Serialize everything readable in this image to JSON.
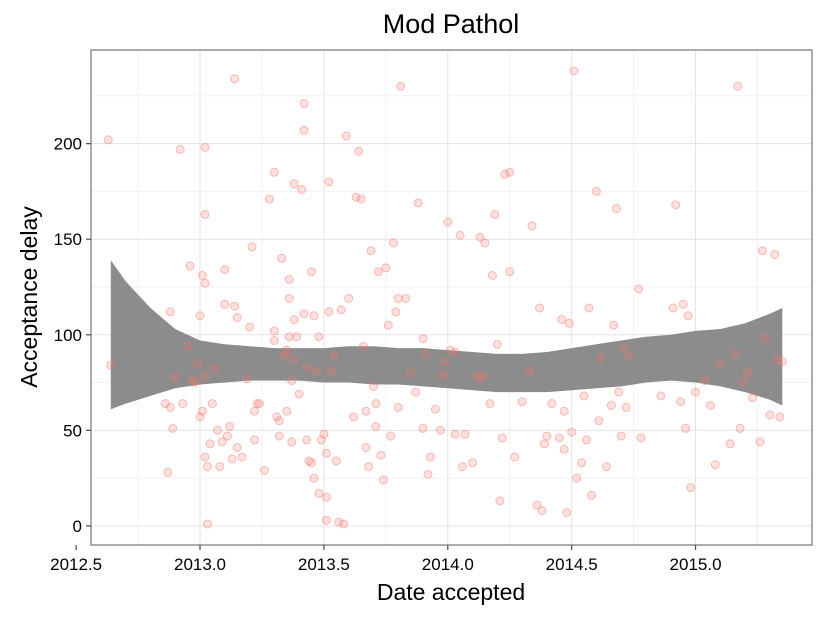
{
  "chart_data": {
    "type": "scatter",
    "title": "Mod Pathol",
    "xlabel": "Date accepted",
    "ylabel": "Acceptance delay",
    "xlim": [
      2012.56,
      2015.47
    ],
    "ylim": [
      -10,
      249
    ],
    "xticks": [
      2012.5,
      2013.0,
      2013.5,
      2014.0,
      2014.5,
      2015.0
    ],
    "xtick_labels": [
      "2012.5",
      "2013.0",
      "2013.5",
      "2014.0",
      "2014.5",
      "2015.0"
    ],
    "yticks": [
      0,
      50,
      100,
      150,
      200
    ],
    "ytick_labels": [
      "0",
      "50",
      "100",
      "150",
      "200"
    ],
    "grid": true,
    "point_color": "#f8766d",
    "band_color": "#8c8c8c",
    "points": [
      [
        2012.63,
        202
      ],
      [
        2012.64,
        84
      ],
      [
        2012.86,
        64
      ],
      [
        2012.87,
        28
      ],
      [
        2012.88,
        112
      ],
      [
        2012.88,
        62
      ],
      [
        2012.89,
        51
      ],
      [
        2012.9,
        78
      ],
      [
        2012.92,
        197
      ],
      [
        2012.93,
        64
      ],
      [
        2012.95,
        94
      ],
      [
        2012.96,
        136
      ],
      [
        2012.97,
        76
      ],
      [
        2012.98,
        75
      ],
      [
        2012.99,
        85
      ],
      [
        2013.0,
        110
      ],
      [
        2013.0,
        57
      ],
      [
        2013.01,
        131
      ],
      [
        2013.01,
        60
      ],
      [
        2013.02,
        198
      ],
      [
        2013.02,
        163
      ],
      [
        2013.02,
        127
      ],
      [
        2013.02,
        78
      ],
      [
        2013.02,
        36
      ],
      [
        2013.03,
        1
      ],
      [
        2013.03,
        31
      ],
      [
        2013.04,
        43
      ],
      [
        2013.05,
        64
      ],
      [
        2013.06,
        82
      ],
      [
        2013.07,
        50
      ],
      [
        2013.08,
        31
      ],
      [
        2013.09,
        44
      ],
      [
        2013.1,
        116
      ],
      [
        2013.1,
        134
      ],
      [
        2013.11,
        47
      ],
      [
        2013.12,
        52
      ],
      [
        2013.13,
        35
      ],
      [
        2013.14,
        115
      ],
      [
        2013.14,
        234
      ],
      [
        2013.15,
        109
      ],
      [
        2013.15,
        41
      ],
      [
        2013.17,
        36
      ],
      [
        2013.19,
        77
      ],
      [
        2013.2,
        104
      ],
      [
        2013.21,
        146
      ],
      [
        2013.22,
        60
      ],
      [
        2013.22,
        45
      ],
      [
        2013.23,
        64
      ],
      [
        2013.24,
        64
      ],
      [
        2013.26,
        29
      ],
      [
        2013.28,
        171
      ],
      [
        2013.3,
        185
      ],
      [
        2013.3,
        102
      ],
      [
        2013.3,
        97
      ],
      [
        2013.31,
        57
      ],
      [
        2013.32,
        55
      ],
      [
        2013.32,
        47
      ],
      [
        2013.33,
        140
      ],
      [
        2013.34,
        89
      ],
      [
        2013.35,
        92
      ],
      [
        2013.35,
        60
      ],
      [
        2013.36,
        119
      ],
      [
        2013.36,
        129
      ],
      [
        2013.36,
        99
      ],
      [
        2013.37,
        76
      ],
      [
        2013.37,
        44
      ],
      [
        2013.38,
        108
      ],
      [
        2013.38,
        87
      ],
      [
        2013.38,
        179
      ],
      [
        2013.39,
        99
      ],
      [
        2013.4,
        69
      ],
      [
        2013.41,
        176
      ],
      [
        2013.42,
        221
      ],
      [
        2013.42,
        207
      ],
      [
        2013.42,
        111
      ],
      [
        2013.43,
        83
      ],
      [
        2013.43,
        45
      ],
      [
        2013.44,
        34
      ],
      [
        2013.45,
        33
      ],
      [
        2013.45,
        133
      ],
      [
        2013.46,
        110
      ],
      [
        2013.46,
        25
      ],
      [
        2013.47,
        81
      ],
      [
        2013.48,
        17
      ],
      [
        2013.48,
        99
      ],
      [
        2013.49,
        45
      ],
      [
        2013.5,
        48
      ],
      [
        2013.51,
        3
      ],
      [
        2013.51,
        38
      ],
      [
        2013.51,
        15
      ],
      [
        2013.52,
        180
      ],
      [
        2013.52,
        112
      ],
      [
        2013.53,
        81
      ],
      [
        2013.54,
        89
      ],
      [
        2013.55,
        34
      ],
      [
        2013.56,
        2
      ],
      [
        2013.57,
        113
      ],
      [
        2013.58,
        1
      ],
      [
        2013.59,
        204
      ],
      [
        2013.6,
        119
      ],
      [
        2013.62,
        57
      ],
      [
        2013.63,
        172
      ],
      [
        2013.64,
        196
      ],
      [
        2013.65,
        171
      ],
      [
        2013.66,
        94
      ],
      [
        2013.67,
        60
      ],
      [
        2013.67,
        41
      ],
      [
        2013.68,
        31
      ],
      [
        2013.69,
        144
      ],
      [
        2013.7,
        73
      ],
      [
        2013.71,
        64
      ],
      [
        2013.71,
        52
      ],
      [
        2013.72,
        133
      ],
      [
        2013.73,
        37
      ],
      [
        2013.74,
        24
      ],
      [
        2013.75,
        135
      ],
      [
        2013.76,
        105
      ],
      [
        2013.77,
        47
      ],
      [
        2013.78,
        148
      ],
      [
        2013.79,
        112
      ],
      [
        2013.8,
        119
      ],
      [
        2013.8,
        62
      ],
      [
        2013.81,
        230
      ],
      [
        2013.83,
        119
      ],
      [
        2013.85,
        80
      ],
      [
        2013.87,
        70
      ],
      [
        2013.88,
        169
      ],
      [
        2013.9,
        98
      ],
      [
        2013.9,
        51
      ],
      [
        2013.91,
        90
      ],
      [
        2013.92,
        27
      ],
      [
        2013.93,
        36
      ],
      [
        2013.95,
        61
      ],
      [
        2013.97,
        50
      ],
      [
        2013.98,
        79
      ],
      [
        2013.99,
        86
      ],
      [
        2014.0,
        159
      ],
      [
        2014.01,
        92
      ],
      [
        2014.03,
        91
      ],
      [
        2014.03,
        48
      ],
      [
        2014.05,
        152
      ],
      [
        2014.06,
        31
      ],
      [
        2014.07,
        48
      ],
      [
        2014.1,
        33
      ],
      [
        2014.12,
        78
      ],
      [
        2014.13,
        151
      ],
      [
        2014.14,
        78
      ],
      [
        2014.15,
        148
      ],
      [
        2014.17,
        64
      ],
      [
        2014.18,
        131
      ],
      [
        2014.19,
        163
      ],
      [
        2014.2,
        95
      ],
      [
        2014.21,
        13
      ],
      [
        2014.22,
        46
      ],
      [
        2014.23,
        184
      ],
      [
        2014.25,
        185
      ],
      [
        2014.25,
        133
      ],
      [
        2014.27,
        36
      ],
      [
        2014.3,
        65
      ],
      [
        2014.33,
        81
      ],
      [
        2014.34,
        157
      ],
      [
        2014.36,
        11
      ],
      [
        2014.37,
        114
      ],
      [
        2014.38,
        8
      ],
      [
        2014.39,
        43
      ],
      [
        2014.4,
        47
      ],
      [
        2014.42,
        64
      ],
      [
        2014.45,
        46
      ],
      [
        2014.46,
        108
      ],
      [
        2014.47,
        60
      ],
      [
        2014.47,
        40
      ],
      [
        2014.48,
        7
      ],
      [
        2014.49,
        106
      ],
      [
        2014.5,
        49
      ],
      [
        2014.51,
        238
      ],
      [
        2014.52,
        25
      ],
      [
        2014.54,
        33
      ],
      [
        2014.55,
        68
      ],
      [
        2014.56,
        45
      ],
      [
        2014.57,
        114
      ],
      [
        2014.58,
        16
      ],
      [
        2014.6,
        175
      ],
      [
        2014.61,
        55
      ],
      [
        2014.62,
        88
      ],
      [
        2014.64,
        31
      ],
      [
        2014.66,
        63
      ],
      [
        2014.67,
        105
      ],
      [
        2014.68,
        166
      ],
      [
        2014.69,
        70
      ],
      [
        2014.7,
        47
      ],
      [
        2014.71,
        93
      ],
      [
        2014.72,
        62
      ],
      [
        2014.73,
        89
      ],
      [
        2014.77,
        124
      ],
      [
        2014.78,
        46
      ],
      [
        2014.86,
        68
      ],
      [
        2014.91,
        114
      ],
      [
        2014.92,
        168
      ],
      [
        2014.94,
        65
      ],
      [
        2014.95,
        116
      ],
      [
        2014.96,
        51
      ],
      [
        2014.97,
        110
      ],
      [
        2014.98,
        20
      ],
      [
        2015.0,
        70
      ],
      [
        2015.04,
        76
      ],
      [
        2015.06,
        63
      ],
      [
        2015.08,
        32
      ],
      [
        2015.1,
        85
      ],
      [
        2015.14,
        43
      ],
      [
        2015.16,
        90
      ],
      [
        2015.17,
        230
      ],
      [
        2015.18,
        51
      ],
      [
        2015.19,
        75
      ],
      [
        2015.21,
        80
      ],
      [
        2015.23,
        67
      ],
      [
        2015.26,
        44
      ],
      [
        2015.27,
        144
      ],
      [
        2015.28,
        98
      ],
      [
        2015.3,
        58
      ],
      [
        2015.32,
        142
      ],
      [
        2015.33,
        87
      ],
      [
        2015.34,
        57
      ],
      [
        2015.35,
        86
      ]
    ],
    "smooth_band": [
      {
        "x": 2012.64,
        "lower": 61,
        "upper": 139
      },
      {
        "x": 2012.7,
        "lower": 64,
        "upper": 128
      },
      {
        "x": 2012.8,
        "lower": 68,
        "upper": 114
      },
      {
        "x": 2012.9,
        "lower": 72,
        "upper": 103
      },
      {
        "x": 2013.0,
        "lower": 74,
        "upper": 97
      },
      {
        "x": 2013.1,
        "lower": 75,
        "upper": 95
      },
      {
        "x": 2013.2,
        "lower": 76,
        "upper": 94
      },
      {
        "x": 2013.3,
        "lower": 76,
        "upper": 93
      },
      {
        "x": 2013.4,
        "lower": 76,
        "upper": 93
      },
      {
        "x": 2013.5,
        "lower": 75,
        "upper": 93
      },
      {
        "x": 2013.6,
        "lower": 75,
        "upper": 94
      },
      {
        "x": 2013.7,
        "lower": 74,
        "upper": 94
      },
      {
        "x": 2013.8,
        "lower": 74,
        "upper": 93
      },
      {
        "x": 2013.9,
        "lower": 73,
        "upper": 93
      },
      {
        "x": 2014.0,
        "lower": 72,
        "upper": 92
      },
      {
        "x": 2014.1,
        "lower": 71,
        "upper": 91
      },
      {
        "x": 2014.2,
        "lower": 70,
        "upper": 90
      },
      {
        "x": 2014.3,
        "lower": 70,
        "upper": 90
      },
      {
        "x": 2014.4,
        "lower": 70,
        "upper": 91
      },
      {
        "x": 2014.5,
        "lower": 71,
        "upper": 93
      },
      {
        "x": 2014.6,
        "lower": 72,
        "upper": 95
      },
      {
        "x": 2014.7,
        "lower": 73,
        "upper": 97
      },
      {
        "x": 2014.8,
        "lower": 75,
        "upper": 99
      },
      {
        "x": 2014.9,
        "lower": 76,
        "upper": 100
      },
      {
        "x": 2015.0,
        "lower": 75,
        "upper": 102
      },
      {
        "x": 2015.1,
        "lower": 73,
        "upper": 103
      },
      {
        "x": 2015.2,
        "lower": 70,
        "upper": 106
      },
      {
        "x": 2015.3,
        "lower": 66,
        "upper": 111
      },
      {
        "x": 2015.35,
        "lower": 63,
        "upper": 114
      }
    ]
  }
}
